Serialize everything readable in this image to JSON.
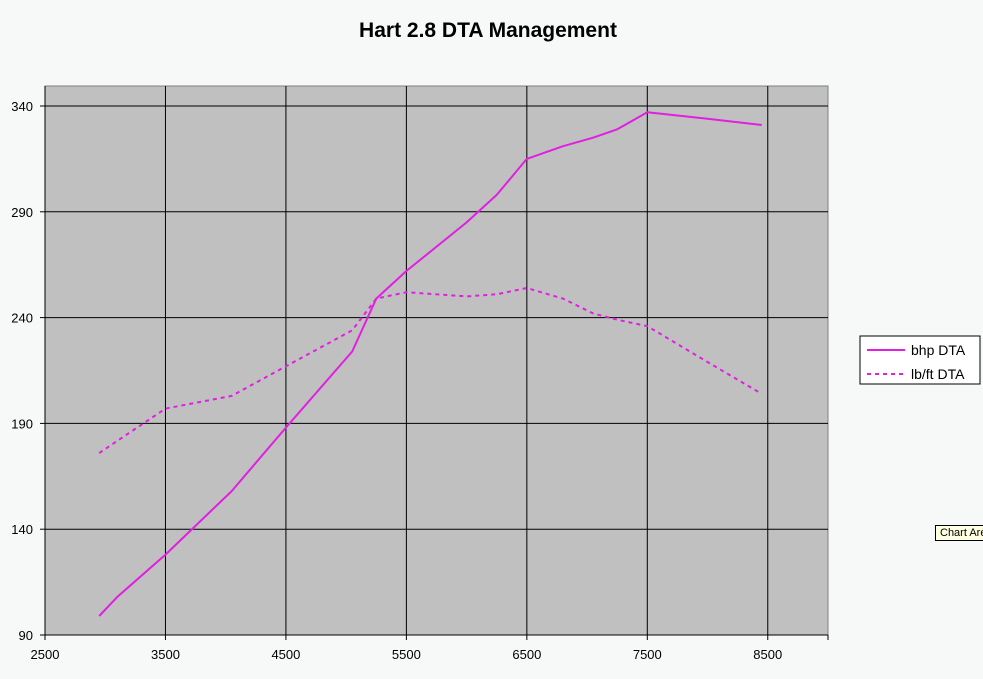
{
  "chart_data": {
    "type": "line",
    "title": "Hart 2.8 DTA Management",
    "xlabel": "",
    "ylabel": "",
    "xlim": [
      2500,
      9000
    ],
    "ylim": [
      90,
      340
    ],
    "xticks": [
      2500,
      3500,
      4500,
      5500,
      6500,
      7500,
      8500
    ],
    "yticks": [
      90,
      140,
      190,
      240,
      290,
      340
    ],
    "grid": true,
    "plot_background": "#c0c0c0",
    "legend_position": "right",
    "series": [
      {
        "name": "bhp DTA",
        "style": "solid",
        "color": "#e020e0",
        "x": [
          2950,
          3100,
          3500,
          4050,
          4500,
          5050,
          5250,
          5500,
          6000,
          6250,
          6500,
          6800,
          7050,
          7250,
          7500,
          8000,
          8450
        ],
        "y": [
          99,
          108,
          128,
          158,
          188,
          224,
          249,
          262,
          285,
          298,
          315,
          321,
          325,
          329,
          337,
          334,
          331
        ]
      },
      {
        "name": "lb/ft DTA",
        "style": "dashed",
        "color": "#e020e0",
        "x": [
          2950,
          3500,
          4050,
          4500,
          5050,
          5250,
          5500,
          6000,
          6250,
          6500,
          6800,
          7050,
          7250,
          7500,
          8000,
          8450
        ],
        "y": [
          176,
          197,
          203,
          217,
          234,
          249,
          252,
          250,
          251,
          254,
          249,
          242,
          239,
          236,
          219,
          204
        ]
      }
    ]
  },
  "tooltip": "Chart Area"
}
